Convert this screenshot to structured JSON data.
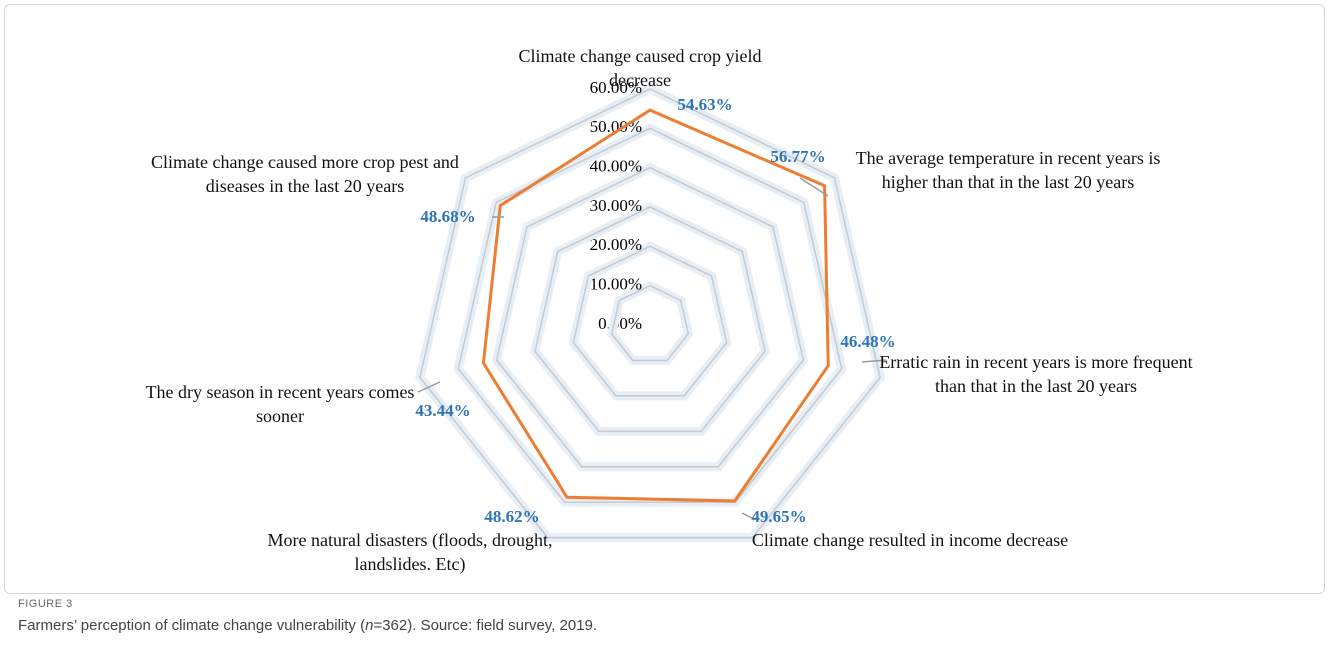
{
  "chart_data": {
    "type": "radar",
    "categories": [
      "Climate change caused crop yield decrease",
      "The average temperature in recent years is higher than that in the last 20 years",
      "Erratic rain in recent years is more frequent than that in the last 20 years",
      "Climate change resulted in income decrease",
      "More natural disasters (floods, drought, landslides. Etc)",
      "The dry season in recent years comes sooner",
      "Climate change caused more crop pest and diseases in the last 20 years"
    ],
    "values": [
      54.63,
      56.77,
      46.48,
      49.65,
      48.62,
      43.44,
      48.68
    ],
    "value_labels": [
      "54.63%",
      "56.77%",
      "46.48%",
      "49.65%",
      "48.62%",
      "43.44%",
      "48.68%"
    ],
    "color": "#ed7d31",
    "value_label_color": "#2e75b6",
    "ylim": [
      0,
      60
    ],
    "yticks": [
      {
        "value": 0,
        "label": "0.00%"
      },
      {
        "value": 10,
        "label": "10.00%"
      },
      {
        "value": 20,
        "label": "20.00%"
      },
      {
        "value": 30,
        "label": "30.00%"
      },
      {
        "value": 40,
        "label": "40.00%"
      },
      {
        "value": 50,
        "label": "50.00%"
      },
      {
        "value": 60,
        "label": "60.00%"
      }
    ],
    "grid": true
  },
  "caption": {
    "label": "FIGURE 3",
    "text": [
      "Farmers’ perception of climate change vulnerability (",
      "n",
      "=362). Source: field survey, 2019."
    ]
  }
}
